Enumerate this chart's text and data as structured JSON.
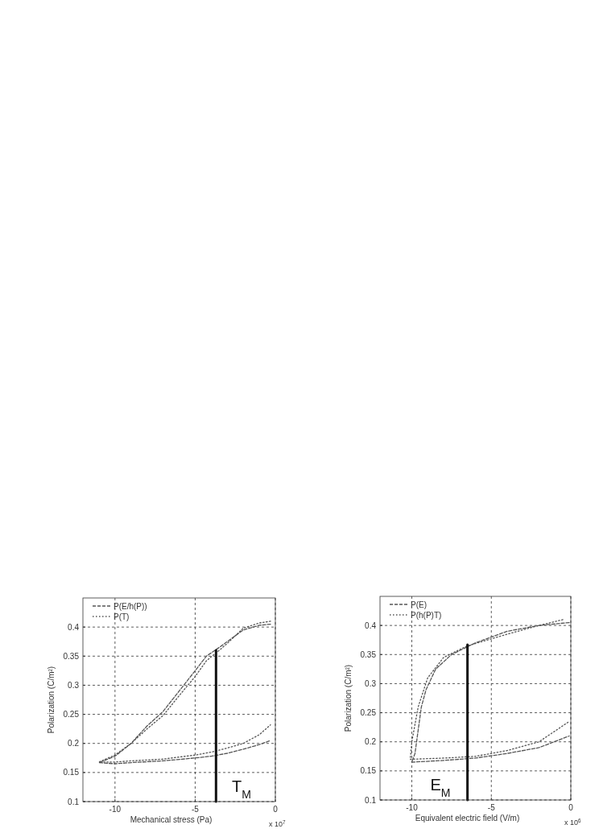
{
  "chart_data": [
    {
      "type": "line",
      "xlabel": "Mechanical stress (Pa)",
      "ylabel": "Polarization (C/m²)",
      "xlim": [
        -12,
        0
      ],
      "xticks": [
        -10,
        -5,
        0
      ],
      "ylim": [
        0.1,
        0.45
      ],
      "yticks": [
        0.1,
        0.15,
        0.2,
        0.25,
        0.3,
        0.35,
        0.4
      ],
      "grid": true,
      "legend": "top left",
      "marker": "none",
      "annotations": [
        "x 10$^{7}$",
        "T$_{M}$"
      ],
      "series": [
        {
          "name": "P(E/h(P))",
          "color": "#555555",
          "line_style": "dashed",
          "x": [
            -0.3,
            -1,
            -2,
            -3,
            -3.5,
            -4.3,
            -5,
            -6,
            -7,
            -8,
            -9,
            -10,
            -11,
            -10,
            -9,
            -7,
            -5,
            -4,
            -3,
            -2,
            -1,
            -0.3
          ],
          "values": [
            0.405,
            0.403,
            0.395,
            0.375,
            0.365,
            0.35,
            0.325,
            0.29,
            0.255,
            0.23,
            0.2,
            0.178,
            0.167,
            0.165,
            0.167,
            0.17,
            0.175,
            0.178,
            0.183,
            0.19,
            0.198,
            0.205
          ]
        },
        {
          "name": "P(T)",
          "color": "#555555",
          "line_style": "dotted",
          "x": [
            -0.3,
            -1,
            -2,
            -3,
            -3.5,
            -4.3,
            -5,
            -6,
            -7,
            -8,
            -9,
            -10,
            -11,
            -10,
            -9,
            -7,
            -5,
            -4,
            -3,
            -2,
            -1,
            -0.3
          ],
          "values": [
            0.41,
            0.407,
            0.398,
            0.372,
            0.36,
            0.342,
            0.315,
            0.282,
            0.248,
            0.225,
            0.2,
            0.18,
            0.168,
            0.168,
            0.17,
            0.173,
            0.18,
            0.185,
            0.192,
            0.2,
            0.215,
            0.232
          ]
        },
        {
          "color": "#111111",
          "line_style": "solid",
          "x": [
            -3.7,
            -3.7
          ],
          "values": [
            0.1,
            0.36
          ]
        }
      ]
    },
    {
      "type": "line",
      "xlabel": "Equivalent electric field (V/m)",
      "ylabel": "Polarization (C/m²)",
      "xlim": [
        -12,
        0
      ],
      "xticks": [
        -10,
        -5,
        0
      ],
      "ylim": [
        0.1,
        0.45
      ],
      "yticks": [
        0.1,
        0.15,
        0.2,
        0.25,
        0.3,
        0.35,
        0.4
      ],
      "grid": true,
      "legend": "top left",
      "marker": "none",
      "annotations": [
        "x 10$^{6}$",
        "E$_{M}$"
      ],
      "series": [
        {
          "name": "P(E)",
          "color": "#555555",
          "line_style": "dashed",
          "x": [
            -0.1,
            -2,
            -4,
            -6,
            -7.5,
            -8.5,
            -9.1,
            -9.4,
            -9.6,
            -9.8,
            -10,
            -8,
            -6,
            -4,
            -2,
            -0.1
          ],
          "values": [
            0.405,
            0.4,
            0.39,
            0.37,
            0.35,
            0.325,
            0.29,
            0.26,
            0.22,
            0.18,
            0.165,
            0.168,
            0.172,
            0.18,
            0.19,
            0.21
          ]
        },
        {
          "name": "P(h(P)T)",
          "color": "#555555",
          "line_style": "dotted",
          "x": [
            -0.5,
            -2,
            -4,
            -6.5,
            -8,
            -9,
            -9.6,
            -10,
            -10.1,
            -8,
            -6,
            -4,
            -2,
            -0.1
          ],
          "values": [
            0.41,
            0.4,
            0.385,
            0.365,
            0.345,
            0.31,
            0.26,
            0.2,
            0.17,
            0.172,
            0.175,
            0.185,
            0.2,
            0.235
          ]
        },
        {
          "color": "#111111",
          "line_style": "solid",
          "x": [
            -6.5,
            -6.5
          ],
          "values": [
            0.1,
            0.367
          ]
        }
      ]
    }
  ]
}
